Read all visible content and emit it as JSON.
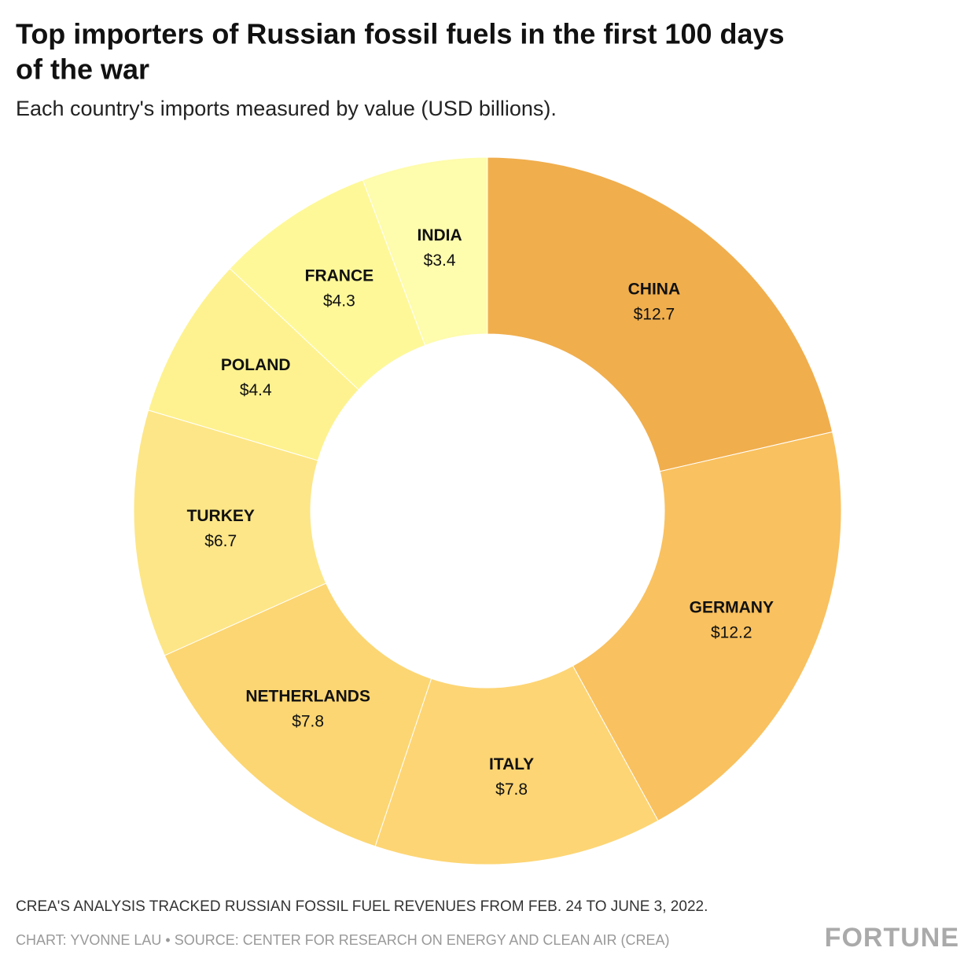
{
  "chart_data": {
    "type": "donut",
    "title": "Top importers of Russian fossil fuels in the first 100 days",
    "title_line2": "of the war",
    "subtitle": "Each country's imports measured by value (USD billions).",
    "note": "CREA'S ANALYSIS TRACKED RUSSIAN FOSSIL FUEL REVENUES FROM FEB. 24 TO JUNE 3, 2022.",
    "source": "CHART: YVONNE LAU • SOURCE: CENTER FOR RESEARCH ON ENERGY AND CLEAN AIR (CREA)",
    "logo": "FORTUNE",
    "categories": [
      "CHINA",
      "GERMANY",
      "ITALY",
      "NETHERLANDS",
      "TURKEY",
      "POLAND",
      "FRANCE",
      "INDIA"
    ],
    "values": [
      12.7,
      12.2,
      7.8,
      7.8,
      6.7,
      4.4,
      4.3,
      3.4
    ],
    "value_labels": [
      "$12.7",
      "$12.2",
      "$7.8",
      "$7.8",
      "$6.7",
      "$4.4",
      "$4.3",
      "$3.4"
    ],
    "colors": [
      "#f0ae4d",
      "#f9c15f",
      "#fdd574",
      "#fcd672",
      "#fde687",
      "#fef290",
      "#fef899",
      "#fefcad"
    ]
  }
}
